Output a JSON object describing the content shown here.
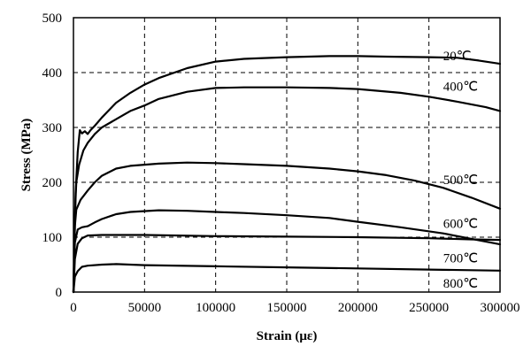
{
  "chart_data": {
    "type": "line",
    "title": "",
    "xlabel": "Strain (με)",
    "ylabel": "Stress (MPa)",
    "xlim": [
      0,
      300000
    ],
    "ylim": [
      0,
      500
    ],
    "grid": true,
    "x_ticks": [
      0,
      50000,
      100000,
      150000,
      200000,
      250000,
      300000
    ],
    "x_tick_labels": [
      "0",
      "50000",
      "100000",
      "150000",
      "200000",
      "250000",
      "300000"
    ],
    "y_ticks": [
      0,
      100,
      200,
      300,
      400,
      500
    ],
    "y_tick_labels": [
      "0",
      "100",
      "200",
      "300",
      "400",
      "500"
    ],
    "series": [
      {
        "name": "20℃",
        "label_at": [
          260000,
          431
        ],
        "x": [
          0,
          1500,
          3000,
          4500,
          6000,
          8000,
          10000,
          12000,
          15000,
          20000,
          30000,
          40000,
          50000,
          60000,
          80000,
          100000,
          120000,
          150000,
          180000,
          200000,
          220000,
          250000,
          270000,
          285000,
          300000
        ],
        "y": [
          0,
          180,
          255,
          295,
          289,
          293,
          288,
          295,
          303,
          318,
          345,
          363,
          378,
          390,
          408,
          420,
          425,
          428,
          430,
          430,
          429,
          428,
          427,
          422,
          416
        ]
      },
      {
        "name": "400℃",
        "label_at": [
          260000,
          375
        ],
        "x": [
          0,
          1000,
          2000,
          4000,
          7000,
          10000,
          15000,
          20000,
          30000,
          40000,
          50000,
          60000,
          80000,
          100000,
          120000,
          150000,
          180000,
          200000,
          230000,
          250000,
          270000,
          290000,
          300000
        ],
        "y": [
          0,
          140,
          200,
          232,
          258,
          272,
          288,
          300,
          315,
          330,
          340,
          352,
          365,
          372,
          373,
          373,
          372,
          370,
          363,
          356,
          347,
          337,
          330
        ]
      },
      {
        "name": "500℃",
        "label_at": [
          260000,
          205
        ],
        "x": [
          0,
          1000,
          2000,
          5000,
          10000,
          15000,
          20000,
          30000,
          40000,
          60000,
          80000,
          100000,
          120000,
          150000,
          180000,
          200000,
          220000,
          240000,
          260000,
          280000,
          300000
        ],
        "y": [
          0,
          120,
          150,
          168,
          185,
          200,
          212,
          225,
          230,
          234,
          236,
          235,
          233,
          230,
          225,
          220,
          213,
          203,
          190,
          172,
          152
        ]
      },
      {
        "name": "600℃",
        "label_at": [
          260000,
          125
        ],
        "x": [
          0,
          1000,
          3000,
          6000,
          10000,
          15000,
          20000,
          30000,
          40000,
          60000,
          80000,
          100000,
          120000,
          150000,
          180000,
          200000,
          230000,
          260000,
          280000,
          300000
        ],
        "y": [
          0,
          90,
          114,
          118,
          120,
          127,
          133,
          142,
          146,
          149,
          148,
          146,
          144,
          140,
          135,
          128,
          118,
          107,
          97,
          87
        ]
      },
      {
        "name": "700℃",
        "label_at": [
          260000,
          62
        ],
        "x": [
          0,
          1000,
          3000,
          6000,
          10000,
          20000,
          30000,
          50000,
          100000,
          150000,
          200000,
          250000,
          280000,
          300000
        ],
        "y": [
          0,
          60,
          88,
          98,
          103,
          104,
          104,
          104,
          102,
          101,
          100,
          98,
          96,
          95
        ]
      },
      {
        "name": "800℃",
        "label_at": [
          260000,
          16
        ],
        "x": [
          0,
          1000,
          3000,
          6000,
          10000,
          20000,
          30000,
          50000,
          100000,
          150000,
          200000,
          250000,
          300000
        ],
        "y": [
          0,
          28,
          38,
          46,
          48,
          50,
          51,
          49,
          47,
          45,
          43,
          41,
          39
        ]
      }
    ]
  }
}
